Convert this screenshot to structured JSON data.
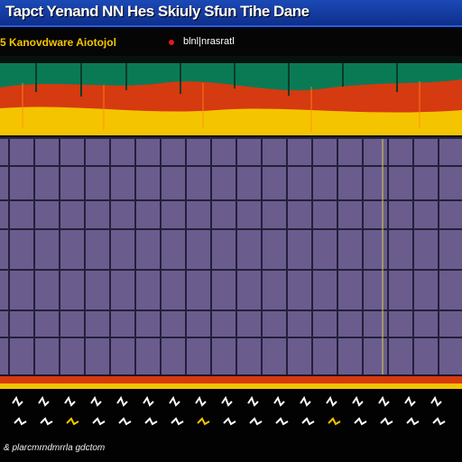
{
  "window": {
    "title": "Tapct Yenand NN Hes Skiuly Sfun Tihe Dane",
    "title_bar_color": "#1b49b6"
  },
  "toolbar": {
    "number": "5",
    "label": "Kanovdware Aiotojol",
    "extra_label": "blnl|nrasratl",
    "label_color": "#f5c400",
    "indicator_color": "#e21a1a"
  },
  "display": {
    "panel_color": "#6b5c8e",
    "grid_color": "#22203a",
    "spectrum_colors": [
      "#0a7a55",
      "#d63a10",
      "#f5c400"
    ]
  },
  "footer": {
    "text": "& plarcmrndmrrla gdctom"
  }
}
